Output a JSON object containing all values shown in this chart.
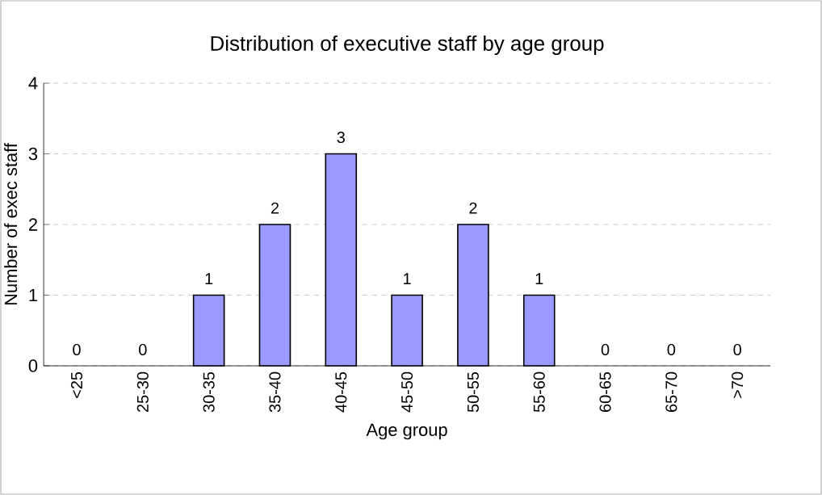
{
  "chart_data": {
    "type": "bar",
    "title": "Distribution of executive staff by age group",
    "xlabel": "Age group",
    "ylabel": "Number  of exec staff",
    "categories": [
      "<25",
      "25-30",
      "30-35",
      "35-40",
      "40-45",
      "45-50",
      "50-55",
      "55-60",
      "60-65",
      "65-70",
      ">70"
    ],
    "values": [
      0,
      0,
      1,
      2,
      3,
      1,
      2,
      1,
      0,
      0,
      0
    ],
    "color": "#9999ff",
    "ylim": [
      0,
      4
    ],
    "yticks": [
      0,
      1,
      2,
      3,
      4
    ],
    "grid": "y",
    "data_labels": true
  }
}
